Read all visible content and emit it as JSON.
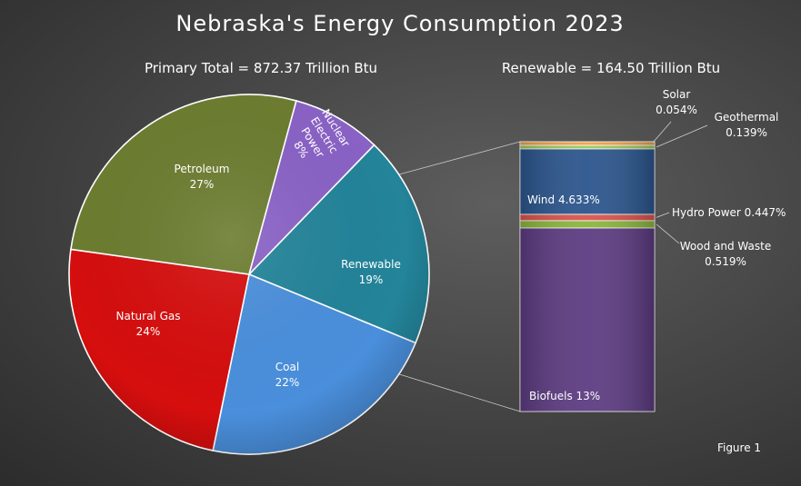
{
  "chart_data": [
    {
      "type": "pie",
      "title": "Nebraska's Energy Consumption 2023",
      "subtitle": "Primary Total = 872.37 Trillion Btu",
      "slices": [
        {
          "name": "Renewable",
          "pct_label": "19%",
          "value": 19,
          "color": "#23849a"
        },
        {
          "name": "Coal",
          "pct_label": "22%",
          "value": 22,
          "color": "#4a8fdc"
        },
        {
          "name": "Natural Gas",
          "pct_label": "24%",
          "value": 24,
          "color": "#d60e0e"
        },
        {
          "name": "Petroleum",
          "pct_label": "27%",
          "value": 27,
          "color": "#6c7d30"
        },
        {
          "name": "Nuclear Electric Power",
          "name_lines": [
            "Nuclear",
            "Electric",
            "Power"
          ],
          "pct_label": "8%",
          "value": 8,
          "color": "#8a62c6"
        }
      ]
    },
    {
      "type": "bar",
      "stacked": true,
      "subtitle": "Renewable = 164.50 Trillion Btu",
      "segments": [
        {
          "name": "Biofuels",
          "label": "Biofuels 13%",
          "value": 13,
          "color": "#5b3a80"
        },
        {
          "name": "Wood and Waste",
          "label_lines": [
            "Wood and Waste",
            "0.519%"
          ],
          "value": 0.519,
          "color": "#89b63c"
        },
        {
          "name": "Hydro Power",
          "label": "Hydro Power 0.447%",
          "value": 0.447,
          "color": "#d9534a"
        },
        {
          "name": "Wind",
          "label": "Wind 4.633%",
          "value": 4.633,
          "color": "#2a548c"
        },
        {
          "name": "Geothermal",
          "label_lines": [
            "Geothermal",
            "0.139%"
          ],
          "value": 0.139,
          "color": "#9bc85a"
        },
        {
          "name": "Solar",
          "label_lines": [
            "Solar",
            "0.054%"
          ],
          "value": 0.054,
          "color": "#f0a04a"
        }
      ]
    }
  ],
  "figure_label": "Figure 1"
}
